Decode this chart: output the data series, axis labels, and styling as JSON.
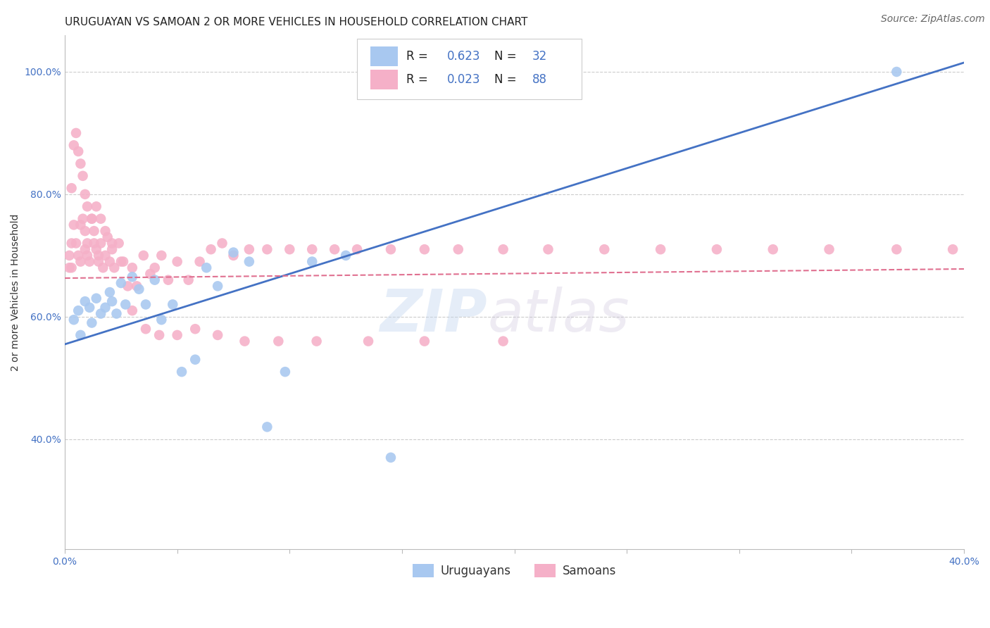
{
  "title": "URUGUAYAN VS SAMOAN 2 OR MORE VEHICLES IN HOUSEHOLD CORRELATION CHART",
  "source": "Source: ZipAtlas.com",
  "ylabel": "2 or more Vehicles in Household",
  "watermark_zip": "ZIP",
  "watermark_atlas": "atlas",
  "uruguayan_color": "#a8c8f0",
  "samoan_color": "#f5b0c8",
  "uruguayan_line_color": "#4472c4",
  "samoan_line_color": "#e07090",
  "uruguayan_R": 0.623,
  "uruguayan_N": 32,
  "samoan_R": 0.023,
  "samoan_N": 88,
  "legend_color": "#4472c4",
  "legend_label_color": "#222222",
  "xlim": [
    0.0,
    0.4
  ],
  "ylim": [
    0.22,
    1.06
  ],
  "yticks": [
    0.4,
    0.6,
    0.8,
    1.0
  ],
  "yticklabels": [
    "40.0%",
    "60.0%",
    "80.0%",
    "100.0%"
  ],
  "xtick_first": "0.0%",
  "xtick_last": "40.0%",
  "uru_line_x": [
    0.0,
    0.4
  ],
  "uru_line_y": [
    0.555,
    1.015
  ],
  "sam_line_x": [
    0.0,
    0.4
  ],
  "sam_line_y": [
    0.663,
    0.678
  ],
  "title_fontsize": 11,
  "axis_label_fontsize": 10,
  "tick_fontsize": 10,
  "legend_fontsize": 12,
  "source_fontsize": 10,
  "background_color": "#ffffff",
  "grid_color": "#cccccc",
  "scatter_size": 110
}
